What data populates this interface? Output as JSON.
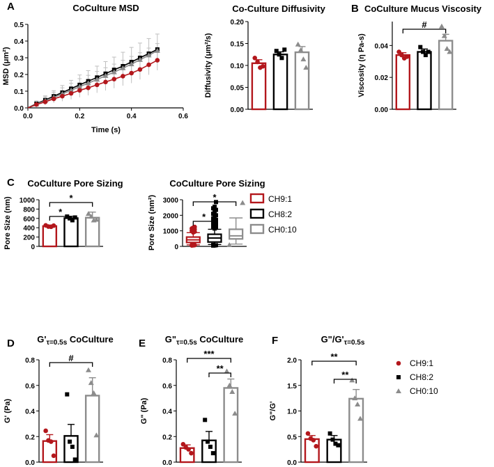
{
  "colors": {
    "red": "#b3171c",
    "black": "#000000",
    "gray": "#8c8c8c",
    "lightgray": "#bfbfbf"
  },
  "panel_letters": [
    "A",
    "B",
    "C",
    "D",
    "E",
    "F"
  ],
  "legend_main": {
    "labels": [
      "CH9:1",
      "CH8:2",
      "CH0:10"
    ]
  },
  "legend_bottom": {
    "labels": [
      "CH9:1",
      "CH8:2",
      "CH0:10"
    ]
  },
  "chart_data": [
    {
      "id": "msd",
      "type": "line",
      "title": "CoCulture MSD",
      "xlabel": "Time (s)",
      "ylabel": "MSD (μm²)",
      "xlim": [
        0,
        0.6
      ],
      "ylim": [
        0,
        0.5
      ],
      "xticks": [
        "0.0",
        "0.2",
        "0.4",
        "0.6"
      ],
      "yticks": [
        "0.0",
        "0.1",
        "0.2",
        "0.3",
        "0.4",
        "0.5"
      ],
      "x": [
        0.033,
        0.067,
        0.1,
        0.133,
        0.167,
        0.2,
        0.233,
        0.267,
        0.3,
        0.333,
        0.367,
        0.4,
        0.433,
        0.467,
        0.5
      ],
      "series": [
        {
          "name": "CH9:1",
          "color": "red",
          "values": [
            0.02,
            0.036,
            0.054,
            0.07,
            0.087,
            0.105,
            0.12,
            0.138,
            0.155,
            0.172,
            0.19,
            0.208,
            0.23,
            0.258,
            0.285
          ]
        },
        {
          "name": "CH8:2",
          "color": "black",
          "values": [
            0.025,
            0.047,
            0.07,
            0.092,
            0.115,
            0.138,
            0.16,
            0.182,
            0.205,
            0.228,
            0.25,
            0.275,
            0.3,
            0.325,
            0.35
          ]
        },
        {
          "name": "CH0:10",
          "color": "gray",
          "values": [
            0.022,
            0.042,
            0.063,
            0.084,
            0.105,
            0.127,
            0.148,
            0.17,
            0.192,
            0.214,
            0.238,
            0.262,
            0.288,
            0.315,
            0.342
          ],
          "err": [
            0.02,
            0.03,
            0.04,
            0.05,
            0.06,
            0.07,
            0.075,
            0.08,
            0.085,
            0.09,
            0.095,
            0.1,
            0.1,
            0.1,
            0.1
          ]
        }
      ]
    },
    {
      "id": "diffusivity",
      "type": "bar",
      "title": "Co-Culture Diffusivity",
      "ylabel": "Diffusivity (μm²/s)",
      "ylim": [
        0,
        0.2
      ],
      "yticks": [
        "0.00",
        "0.05",
        "0.10",
        "0.15",
        "0.20"
      ],
      "categories": [
        "CH9:1",
        "CH8:2",
        "CH0:10"
      ],
      "values": [
        0.105,
        0.125,
        0.13
      ],
      "errors": [
        0.008,
        0.006,
        0.013
      ],
      "points": [
        [
          0.117,
          0.108,
          0.095,
          0.098
        ],
        [
          0.133,
          0.125,
          0.117,
          0.136
        ],
        [
          0.148,
          0.135,
          0.114,
          0.095
        ]
      ]
    },
    {
      "id": "viscosity",
      "type": "bar",
      "title": "CoCulture Mucus Viscosity",
      "ylabel": "Viscosity (η Pa-s)",
      "ylim": [
        0,
        0.055
      ],
      "yticks": [
        "0.00",
        "0.02",
        "0.04"
      ],
      "ytick_values": [
        0,
        0.02,
        0.04
      ],
      "categories": [
        "CH9:1",
        "CH8:2",
        "CH0:10"
      ],
      "values": [
        0.034,
        0.036,
        0.043
      ],
      "errors": [
        0.0015,
        0.0018,
        0.004
      ],
      "points": [
        [
          0.036,
          0.034,
          0.032,
          0.033
        ],
        [
          0.039,
          0.036,
          0.034,
          0.036
        ],
        [
          0.052,
          0.046,
          0.038,
          0.036
        ]
      ],
      "annotations": [
        {
          "from": 0,
          "to": 2,
          "label": "#"
        }
      ]
    },
    {
      "id": "pore_bar",
      "type": "bar",
      "title": "CoCulture Pore Sizing",
      "ylabel": "Pore Size (nm)",
      "ylim": [
        0,
        1000
      ],
      "yticks": [
        "0",
        "200",
        "400",
        "600",
        "800",
        "1000"
      ],
      "categories": [
        "CH9:1",
        "CH8:2",
        "CH0:10"
      ],
      "values": [
        435,
        605,
        615
      ],
      "errors": [
        20,
        40,
        120
      ],
      "points": [
        [
          450,
          425,
          420,
          445
        ],
        [
          640,
          600,
          560,
          620
        ],
        [
          700,
          640,
          560,
          575
        ]
      ],
      "annotations": [
        {
          "from": 0,
          "to": 1,
          "label": "*"
        },
        {
          "from": 0,
          "to": 2,
          "label": "*"
        }
      ]
    },
    {
      "id": "pore_box",
      "type": "box",
      "title": "CoCulture Pore Sizing",
      "ylabel": "Pore Size (nm²)",
      "ylim": [
        0,
        3000
      ],
      "yticks": [
        "0",
        "1000",
        "2000",
        "3000"
      ],
      "categories": [
        "CH9:1",
        "CH8:2",
        "CH0:10"
      ],
      "boxes": [
        {
          "whisker_low": 100,
          "q1": 250,
          "median": 420,
          "q3": 600,
          "whisker_high": 880,
          "outliers": [
            60,
            70,
            80,
            85,
            900,
            950,
            1000,
            1050,
            1100,
            1150,
            1200,
            1250
          ]
        },
        {
          "whisker_low": 120,
          "q1": 280,
          "median": 540,
          "q3": 780,
          "whisker_high": 1100,
          "outliers": [
            50,
            60,
            75,
            90,
            1150,
            1200,
            1250,
            1300,
            1350,
            1400,
            1450,
            1500,
            1550,
            1600,
            1700,
            1800,
            1900,
            2000,
            2100,
            2200,
            2350,
            2450,
            2550,
            2850
          ]
        },
        {
          "whisker_low": 150,
          "q1": 480,
          "median": 680,
          "q3": 1100,
          "whisker_high": 1830,
          "outliers": [
            90,
            2800
          ]
        }
      ],
      "annotations": [
        {
          "from": 0,
          "to": 1,
          "label": "*"
        },
        {
          "from": 0,
          "to": 2,
          "label": "*"
        }
      ]
    },
    {
      "id": "gprime",
      "type": "bar",
      "title_main": "G'",
      "title_sub": "τ=0.5s",
      "title_rest": "CoCulture",
      "ylabel": "G' (Pa)",
      "ylim": [
        0,
        0.8
      ],
      "yticks": [
        "0.0",
        "0.2",
        "0.4",
        "0.6",
        "0.8"
      ],
      "categories": [
        "CH9:1",
        "CH8:2",
        "CH0:10"
      ],
      "values": [
        0.165,
        0.205,
        0.52
      ],
      "errors": [
        0.05,
        0.09,
        0.14
      ],
      "points": [
        [
          0.245,
          0.17,
          0.16,
          0.05
        ],
        [
          0.53,
          0.16,
          0.12,
          0.02
        ],
        [
          0.72,
          0.62,
          0.54,
          0.21
        ]
      ],
      "annotations": [
        {
          "from": 0,
          "to": 2,
          "label": "#"
        }
      ]
    },
    {
      "id": "gdoubleprime",
      "type": "bar",
      "title_main": "G\"",
      "title_sub": "τ=0.5s",
      "title_rest": "CoCulture",
      "ylabel": "G\" (Pa)",
      "ylim": [
        0,
        0.8
      ],
      "yticks": [
        "0.0",
        "0.2",
        "0.4",
        "0.6",
        "0.8"
      ],
      "categories": [
        "CH9:1",
        "CH8:2",
        "CH0:10"
      ],
      "values": [
        0.11,
        0.17,
        0.58
      ],
      "errors": [
        0.025,
        0.07,
        0.07
      ],
      "points": [
        [
          0.14,
          0.115,
          0.1,
          0.07
        ],
        [
          0.33,
          0.16,
          0.12,
          0.07
        ],
        [
          0.71,
          0.6,
          0.55,
          0.38
        ]
      ],
      "annotations": [
        {
          "from": 0,
          "to": 2,
          "label": "***"
        },
        {
          "from": 1,
          "to": 2,
          "label": "**"
        }
      ]
    },
    {
      "id": "ratio",
      "type": "bar",
      "title_main": "G\"/G'",
      "title_sub": "τ=0.5s",
      "title_rest": "",
      "ylabel": "G\"/G'",
      "ylim": [
        0,
        2.0
      ],
      "yticks": [
        "0.0",
        "0.5",
        "1.0",
        "1.5",
        "2.0"
      ],
      "categories": [
        "CH9:1",
        "CH8:2",
        "CH0:10"
      ],
      "values": [
        0.45,
        0.44,
        1.24
      ],
      "errors": [
        0.07,
        0.08,
        0.18
      ],
      "points": [
        [
          0.56,
          0.46,
          0.43,
          0.31
        ],
        [
          0.56,
          0.44,
          0.36,
          0.33
        ],
        [
          1.6,
          1.25,
          1.13,
          0.85
        ]
      ],
      "annotations": [
        {
          "from": 0,
          "to": 2,
          "label": "**"
        },
        {
          "from": 1,
          "to": 2,
          "label": "**"
        }
      ]
    }
  ]
}
